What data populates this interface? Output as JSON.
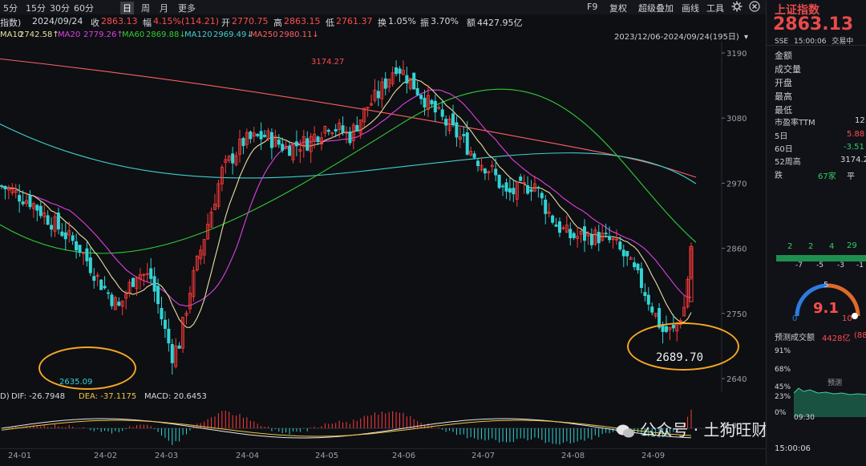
{
  "topbar": {
    "timeframes": [
      "5分",
      "15分",
      "30分",
      "60分",
      "日",
      "周",
      "月",
      "更多"
    ],
    "active": "日",
    "buttons": [
      "F9",
      "复权",
      "超级叠加",
      "画线",
      "工具"
    ]
  },
  "infobar": {
    "name": "指数)",
    "date": "2024/09/24",
    "close_label": "收",
    "close_value": "2863.13",
    "amp_label": "幅",
    "amp_value": "4.15%(114.21)",
    "open_label": "开",
    "open_value": "2770.75",
    "high_label": "高",
    "high_value": "2863.15",
    "low_label": "低",
    "low_value": "2761.37",
    "turnover_label": "换",
    "turnover_value": "1.05%",
    "vib_label": "振",
    "vib_value": "3.70%",
    "amount_label": "额",
    "amount_value": "4427.95亿"
  },
  "ma": [
    {
      "label": "MA10",
      "value": "2742.58↑",
      "color": "#e8e0a0"
    },
    {
      "label": "MA20",
      "value": "2779.26↑",
      "color": "#e040e0"
    },
    {
      "label": "MA60",
      "value": "2869.88↓",
      "color": "#33cc33"
    },
    {
      "label": "MA120",
      "value": "2969.49↓",
      "color": "#40d0d0"
    },
    {
      "label": "MA250",
      "value": "2980.11↓",
      "color": "#ff6060"
    }
  ],
  "range_label": "2023/12/06-2024/09/24(195日)",
  "yaxis": [
    "3190",
    "3080",
    "2970",
    "2860",
    "2750",
    "2640"
  ],
  "yaxis_values": [
    3190,
    3080,
    2970,
    2860,
    2750,
    2640
  ],
  "xaxis": [
    "24-01",
    "24-02",
    "24-03",
    "24-04",
    "24-05",
    "24-06",
    "24-07",
    "24-08",
    "24-09"
  ],
  "annotations": {
    "high_label": "3174.27",
    "low_label_1": "2635.09",
    "low_label_2": "2689.70"
  },
  "macd": {
    "label": "D)",
    "dif": "DIF: -26.7948",
    "dea": "DEA: -37.1175",
    "macd": "MACD: 20.6453",
    "zero": "0.0"
  },
  "right": {
    "title": "上证指数",
    "price": "2863.13",
    "sub1": "SSE",
    "sub2": "15:00:06",
    "sub3": "交易中",
    "rows": [
      {
        "label": "金额"
      },
      {
        "label": "成交量"
      },
      {
        "label": "开盘"
      },
      {
        "label": "最高"
      },
      {
        "label": "最低"
      }
    ],
    "pe_label": "市盈率TTM",
    "pe_value": "12",
    "d5_label": "5日",
    "d5_value": "5.88",
    "d60_label": "60日",
    "d60_value": "-3.51",
    "w52_label": "52周高",
    "w52_value": "3174.2",
    "fall_label": "跌",
    "fall_value": "67家",
    "flat_label": "平",
    "dist_top": [
      "2",
      "2",
      "4",
      "29"
    ],
    "dist_bottom": [
      "-7",
      "-5",
      "-3",
      "-1"
    ],
    "gauge_value": "9.1",
    "gauge_min": "0",
    "gauge_mid": "5",
    "gauge_max": "10",
    "forecast_label": "预测成交额",
    "forecast_value": "4428亿",
    "forecast_pct": "(88",
    "pct_axis": [
      "91%",
      "68%",
      "45%",
      "23%",
      "0%"
    ],
    "forecast_tag": "预测",
    "time1": "09:30",
    "time2": "15:00:06"
  },
  "watermark": "公众号 · 土狗旺财",
  "colors": {
    "up": "#ff3b3b",
    "down": "#33d3d3",
    "ma10": "#e8e0a0",
    "ma20": "#e040e0",
    "ma60": "#33cc33",
    "ma120": "#40d0d0",
    "ma250": "#ff6060",
    "annotation": "#f5a623"
  }
}
